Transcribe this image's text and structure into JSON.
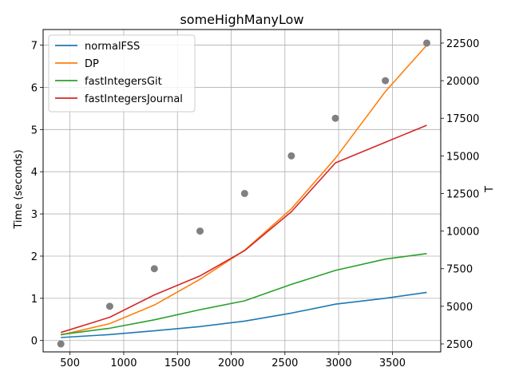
{
  "chart_data": {
    "type": "line",
    "title": "someHighManyLow",
    "xlabel": "",
    "ylabel": "Time (seconds)",
    "y2label": "T",
    "xlim": [
      250,
      3950
    ],
    "ylim": [
      -0.27,
      7.37
    ],
    "y2lim": [
      1970,
      23400
    ],
    "xticks": [
      500,
      1000,
      1500,
      2000,
      2500,
      3000,
      3500
    ],
    "yticks": [
      0,
      1,
      2,
      3,
      4,
      5,
      6,
      7
    ],
    "y2ticks": [
      2500,
      5000,
      7500,
      10000,
      12500,
      15000,
      17500,
      20000,
      22500
    ],
    "grid": true,
    "legend_position": "top-left",
    "x": [
      415,
      870,
      1285,
      1710,
      2125,
      2560,
      2970,
      3435,
      3820
    ],
    "series": [
      {
        "name": "normalFSS",
        "color": "#1f77b4",
        "values": [
          0.07,
          0.14,
          0.23,
          0.33,
          0.46,
          0.65,
          0.86,
          1.0,
          1.14
        ]
      },
      {
        "name": "DP",
        "color": "#ff7f0e",
        "values": [
          0.13,
          0.4,
          0.84,
          1.45,
          2.14,
          3.12,
          4.32,
          5.9,
          7.0
        ]
      },
      {
        "name": "fastIntegersGit",
        "color": "#2ca02c",
        "values": [
          0.14,
          0.29,
          0.49,
          0.73,
          0.94,
          1.33,
          1.66,
          1.93,
          2.06
        ]
      },
      {
        "name": "fastIntegersJournal",
        "color": "#d62728",
        "values": [
          0.19,
          0.55,
          1.08,
          1.53,
          2.13,
          3.05,
          4.21,
          4.7,
          5.1
        ]
      }
    ],
    "scatter_secondary": {
      "color": "#808080",
      "x": [
        415,
        870,
        1285,
        1710,
        2125,
        2560,
        2970,
        3435,
        3820
      ],
      "values": [
        2500,
        5000,
        7500,
        10000,
        12500,
        15000,
        17500,
        20000,
        22500
      ]
    }
  }
}
